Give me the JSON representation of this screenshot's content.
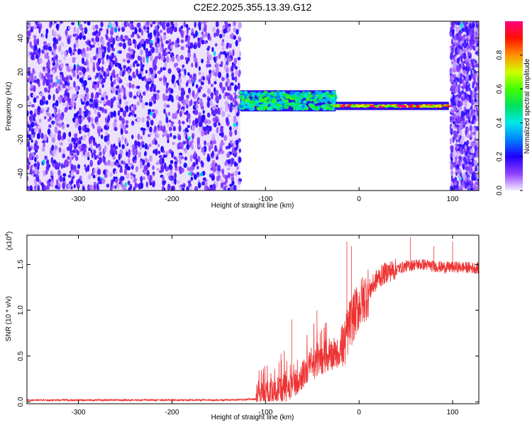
{
  "chart_data": [
    {
      "type": "heatmap",
      "title": "C2E2.2025.355.13.39.G12",
      "xlabel": "Height of straight line (km)",
      "ylabel": "Frequency (Hz)",
      "xlim": [
        -355,
        128
      ],
      "ylim": [
        -50,
        50
      ],
      "x_ticks": [
        -300,
        -200,
        -100,
        0,
        100
      ],
      "x_tick_labels": [
        "-300",
        "-200",
        "-100",
        "0",
        "100"
      ],
      "y_ticks": [
        -40,
        -20,
        0,
        20,
        40
      ],
      "y_tick_labels": [
        "-40",
        "-20",
        "0",
        "20",
        "40"
      ],
      "colorbar": {
        "label": "Normalized spectral amplitude",
        "range": [
          0,
          1
        ],
        "ticks": [
          0.0,
          0.2,
          0.4,
          0.6,
          0.8
        ],
        "tick_labels": [
          "0.0",
          "0.2",
          "0.4",
          "0.6",
          "0.8"
        ],
        "colormap": [
          "#f0e8ff",
          "#8a2be2",
          "#4b00ff",
          "#0000ff",
          "#00c8ff",
          "#00e0a0",
          "#00ff00",
          "#c8ff00",
          "#ffff00",
          "#ff8000",
          "#ff0000",
          "#ff1493"
        ]
      },
      "regions": [
        {
          "name": "noise",
          "x_range": [
            -355,
            -127
          ],
          "freq_range": [
            -50,
            50
          ],
          "amplitude": 0.12
        },
        {
          "name": "blank",
          "x_range": [
            -127,
            96
          ],
          "freq_range": [
            -50,
            50
          ],
          "amplitude": 0.0
        },
        {
          "name": "signal-broad",
          "x_range": [
            -127,
            -25
          ],
          "freq_center": 3,
          "freq_halfwidth": 5,
          "amplitude": 0.5
        },
        {
          "name": "signal-line",
          "x_range": [
            -25,
            96
          ],
          "freq_center": 0,
          "freq_halfwidth": 1.2,
          "amplitude": 0.9
        },
        {
          "name": "noise-right",
          "x_range": [
            98,
            128
          ],
          "freq_range": [
            -50,
            50
          ],
          "amplitude": 0.12
        }
      ],
      "grid": false
    },
    {
      "type": "line",
      "xlabel": "Height of straight line (km)",
      "ylabel": "SNR (10 * v/v)",
      "y_multiplier": "(x10",
      "y_multiplier_exp": "4",
      "xlim": [
        -355,
        128
      ],
      "ylim": [
        -0.02,
        1.82
      ],
      "x_ticks": [
        -300,
        -200,
        -100,
        0,
        100
      ],
      "x_tick_labels": [
        "-300",
        "-200",
        "-100",
        "0",
        "100"
      ],
      "y_ticks": [
        0.0,
        0.5,
        1.0,
        1.5
      ],
      "y_tick_labels": [
        "0.0",
        "0.5",
        "1.0",
        "1.5"
      ],
      "line_color": "#ee3333",
      "series": [
        {
          "x": [
            -355,
            -300,
            -250,
            -200,
            -150,
            -110,
            -100,
            -90,
            -80,
            -70,
            -60,
            -50,
            -40,
            -30,
            -20,
            -15,
            -10,
            -5,
            0,
            10,
            20,
            30,
            40,
            50,
            60,
            70,
            80,
            90,
            100,
            110,
            128
          ],
          "y": [
            0.02,
            0.02,
            0.02,
            0.02,
            0.02,
            0.03,
            0.08,
            0.12,
            0.15,
            0.2,
            0.3,
            0.4,
            0.45,
            0.5,
            0.55,
            0.65,
            0.85,
            0.95,
            1.05,
            1.2,
            1.35,
            1.42,
            1.45,
            1.48,
            1.5,
            1.5,
            1.48,
            1.47,
            1.47,
            1.47,
            1.46
          ],
          "spikes": [
            {
              "x": -72,
              "y": 0.9
            },
            {
              "x": -45,
              "y": 1.0
            },
            {
              "x": -13,
              "y": 1.75
            },
            {
              "x": -8,
              "y": 1.7
            },
            {
              "x": 55,
              "y": 1.8
            },
            {
              "x": 80,
              "y": 1.7
            },
            {
              "x": 100,
              "y": 1.75
            }
          ]
        }
      ],
      "grid": false
    }
  ]
}
